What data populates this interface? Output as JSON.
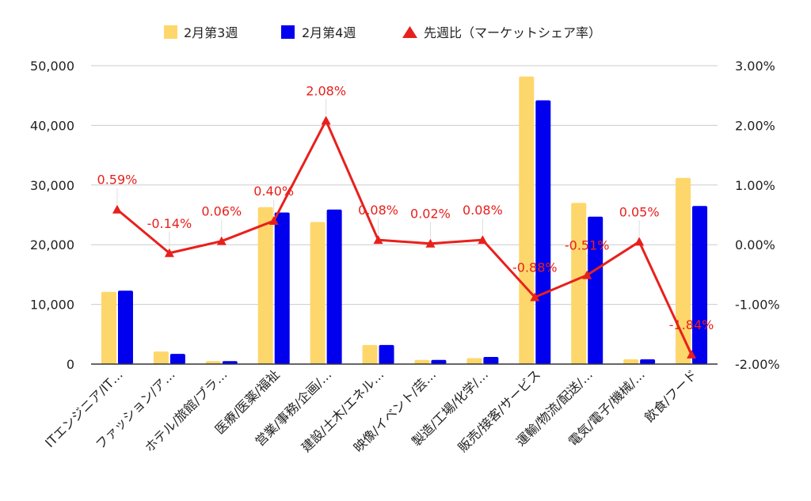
{
  "chart_data": {
    "type": "bar",
    "categories": [
      "ITエンジニア/IT…",
      "ファッション/ア…",
      "ホテル/旅館/ブラ…",
      "医療/医薬/福祉",
      "営業/事務/企画/…",
      "建設/土木/エネル…",
      "映像/イベント/芸…",
      "製造/工場/化学/…",
      "販売/接客/サービス",
      "運輸/物流/配送/…",
      "電気/電子/機械/…",
      "飲食/フード"
    ],
    "series": [
      {
        "name": "2月第3週",
        "type": "bar",
        "axis": "left",
        "color": "#fdd76b",
        "values": [
          12100,
          2100,
          500,
          26300,
          23800,
          3200,
          700,
          1000,
          48200,
          27000,
          800,
          31200
        ]
      },
      {
        "name": "2月第4週",
        "type": "bar",
        "axis": "left",
        "color": "#0000ee",
        "values": [
          12300,
          1700,
          500,
          25400,
          25900,
          3200,
          700,
          1200,
          44200,
          24700,
          800,
          26500
        ]
      },
      {
        "name": "先週比（マーケットシェア率）",
        "type": "line",
        "axis": "right",
        "color": "#e8201c",
        "values": [
          0.59,
          -0.14,
          0.06,
          0.4,
          2.08,
          0.08,
          0.02,
          0.08,
          -0.88,
          -0.51,
          0.05,
          -1.84
        ],
        "labels": [
          "0.59%",
          "-0.14%",
          "0.06%",
          "0.40%",
          "2.08%",
          "0.08%",
          "0.02%",
          "0.08%",
          "-0.88%",
          "-0.51%",
          "0.05%",
          "-1.84%"
        ]
      }
    ],
    "left_axis": {
      "ylim": [
        0,
        50000
      ],
      "ticks": [
        "0",
        "10,000",
        "20,000",
        "30,000",
        "40,000",
        "50,000"
      ]
    },
    "right_axis": {
      "ylim": [
        -2,
        3
      ],
      "ticks": [
        "-2.00%",
        "-1.00%",
        "0.00%",
        "1.00%",
        "2.00%",
        "3.00%"
      ]
    },
    "legend_position": "top-center",
    "grid": true
  }
}
